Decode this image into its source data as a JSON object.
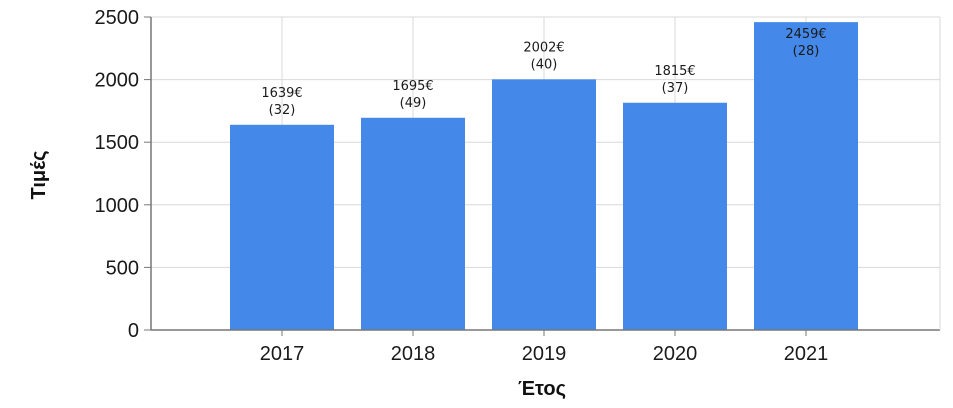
{
  "chart_data": {
    "type": "bar",
    "categories": [
      "2017",
      "2018",
      "2019",
      "2020",
      "2021"
    ],
    "values": [
      1639,
      1695,
      2002,
      1815,
      2459
    ],
    "data_labels": [
      [
        "1639€",
        "(32)"
      ],
      [
        "1695€",
        "(49)"
      ],
      [
        "2002€",
        "(40)"
      ],
      [
        "1815€",
        "(37)"
      ],
      [
        "2459€",
        "(28)"
      ]
    ],
    "xlabel": "Έτος",
    "ylabel": "Τιμές",
    "ylim": [
      0,
      2500
    ],
    "yticks": [
      0,
      500,
      1000,
      1500,
      2000,
      2500
    ],
    "grid": true,
    "colors": {
      "bar": "#4489EA",
      "grid": "#d9d9d9",
      "axis": "#777777"
    }
  }
}
